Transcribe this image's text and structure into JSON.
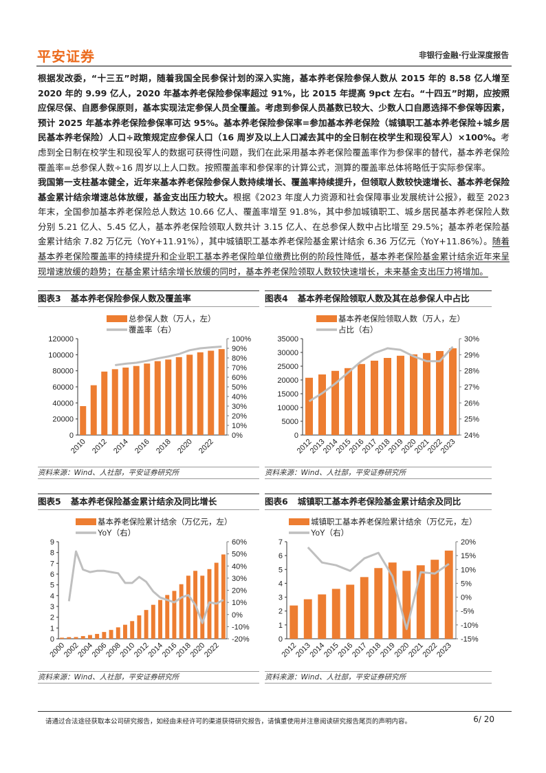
{
  "header": {
    "logo": "平安证券",
    "category": "非银行金融·行业深度报告"
  },
  "paragraphs": [
    {
      "segments": [
        {
          "style": "bold",
          "text": "根据发改委，“十三五”时期，随着我国全民参保计划的深入实施，基本养老保险参保人数从 2015 年的 8.58 亿人增至 2020 年的 9.99 亿人，2020 年基本养老保险参保率超过 91%，比 2015 年提高 9pct 左右。“十四五”时期，应按照应保尽保、自愿参保原则，基本实现法定参保人员全覆盖。考虑到参保人员基数已较大、少数人口自愿选择不参保等因素，预计 2025 年基本养老保险参保率可达 95%。基本养老保险参保率=参加基本养老保险（城镇职工基本养老保险+城乡居民基本养老保险）人口÷政策规定应参保人口（16 周岁及以上人口减去其中的全日制在校学生和现役军人）×100%。"
        },
        {
          "style": "normal",
          "text": "考虑到全日制在校学生和现役军人的数据可获得性问题，我们在此采用基本养老保险覆盖率作为参保率的替代，基本养老保险覆盖率=总参保人数÷16 周岁以上人口数。按照覆盖率和参保率的计算公式，测算的覆盖率总体将略低于实际参保率。"
        }
      ]
    },
    {
      "segments": [
        {
          "style": "bold",
          "text": "我国第一支柱基本健全，近年来基本养老保险参保人数持续增长、覆盖率持续提升，但领取人数较快速增长、基本养老保险基金累计结余增速总体放缓，基金支出压力较大。"
        },
        {
          "style": "normal",
          "text": "根据《2023 年度人力资源和社会保障事业发展统计公报》，截至 2023 年末，全国参加基本养老保险总人数达 10.66 亿人、覆盖率增至 91.8%，其中参加城镇职工、城乡居民基本养老保险人数分别 5.21 亿人、5.45 亿人，基本养老保险领取人数共计 3.15 亿人、在总参保人数中占比增至 29.5%；基本养老保险基金累计结余 7.82 万亿元（YoY+11.91%），其中城镇职工基本养老保险基金累计结余 6.36 万亿元（YoY+11.86%）。"
        },
        {
          "style": "underline",
          "text": "随着基本养老保险覆盖率的持续提升和企业职工基本养老保险单位缴费比例的阶段性降低，基本养老保险基金累计结余近年来呈现增速放缓的趋势；在基金累计结余增长放缓的同时，基本养老保险领取人数较快速增长，未来基金支出压力将增加。"
        }
      ]
    }
  ],
  "figures": [
    {
      "number": "图表3",
      "title": "基本养老保险参保人数及覆盖率",
      "source": "资料来源：Wind、人社部，平安证券研究所"
    },
    {
      "number": "图表4",
      "title": "基本养老保险领取人数及其在总参保人中占比",
      "source": "资料来源：Wind、人社部，平安证券研究所"
    },
    {
      "number": "图表5",
      "title": "基本养老保险基金累计结余及同比增长",
      "source": "资料来源：Wind、人社部，平安证券研究所"
    },
    {
      "number": "图表6",
      "title": "城镇职工基本养老保险基金累计结余及同比",
      "source": "资料来源：Wind、人社部，平安证券研究所"
    }
  ],
  "colors": {
    "bar": "#ED7D31",
    "line": "#BFBFBF",
    "brand": "#EC6A1C"
  },
  "chart_data": [
    {
      "type": "bar+line",
      "categories": [
        "2010",
        "2011",
        "2012",
        "2013",
        "2014",
        "2015",
        "2016",
        "2017",
        "2018",
        "2019",
        "2020",
        "2021",
        "2022",
        "2023"
      ],
      "tick_labels": [
        "2010",
        "2012",
        "2014",
        "2016",
        "2018",
        "2020",
        "2022"
      ],
      "series": [
        {
          "name": "总参保人数（万人，左）",
          "type": "bar",
          "axis": "left",
          "values": [
            36000,
            62000,
            79000,
            82000,
            84000,
            86000,
            89000,
            92000,
            94000,
            97000,
            100000,
            103000,
            105000,
            107000
          ]
        },
        {
          "name": "覆盖率（右）",
          "type": "line",
          "axis": "right",
          "values": [
            null,
            null,
            null,
            72.5,
            74,
            75,
            77,
            79.5,
            81.5,
            84,
            88,
            90,
            91,
            91.8
          ]
        }
      ],
      "ylim_left": [
        0,
        120000
      ],
      "yticks_left": [
        "0",
        "20000",
        "40000",
        "60000",
        "80000",
        "100000",
        "120000"
      ],
      "ylim_right": [
        0,
        100
      ],
      "yticks_right": [
        "0%",
        "10%",
        "20%",
        "30%",
        "40%",
        "50%",
        "60%",
        "70%",
        "80%",
        "90%",
        "100%"
      ],
      "legend": "top"
    },
    {
      "type": "bar+line",
      "categories": [
        "2012",
        "2013",
        "2014",
        "2015",
        "2016",
        "2017",
        "2018",
        "2019",
        "2020",
        "2021",
        "2022",
        "2023"
      ],
      "tick_labels": [
        "2012",
        "2013",
        "2014",
        "2015",
        "2016",
        "2017",
        "2018",
        "2019",
        "2020",
        "2021",
        "2022",
        "2023"
      ],
      "series": [
        {
          "name": "基本养老保险领取人数（万人，左）",
          "type": "bar",
          "axis": "left",
          "values": [
            20800,
            22000,
            23300,
            24300,
            25800,
            27000,
            28000,
            28800,
            29300,
            29800,
            30500,
            31500
          ]
        },
        {
          "name": "占比（右）",
          "type": "line",
          "axis": "right",
          "values": [
            26.1,
            26.6,
            27.2,
            27.9,
            28.6,
            29.1,
            29.4,
            29.3,
            28.9,
            28.6,
            28.6,
            29.5
          ]
        }
      ],
      "ylim_left": [
        0,
        35000
      ],
      "yticks_left": [
        "0",
        "5000",
        "10000",
        "15000",
        "20000",
        "25000",
        "30000",
        "35000"
      ],
      "ylim_right": [
        24,
        30
      ],
      "yticks_right": [
        "24%",
        "25%",
        "26%",
        "27%",
        "28%",
        "29%",
        "30%"
      ],
      "legend": "top"
    },
    {
      "type": "bar+line",
      "categories": [
        "2000",
        "2001",
        "2002",
        "2003",
        "2004",
        "2005",
        "2006",
        "2007",
        "2008",
        "2009",
        "2010",
        "2011",
        "2012",
        "2013",
        "2014",
        "2015",
        "2016",
        "2017",
        "2018",
        "2019",
        "2020",
        "2021",
        "2022",
        "2023"
      ],
      "tick_labels": [
        "2000",
        "2002",
        "2004",
        "2006",
        "2008",
        "2010",
        "2012",
        "2014",
        "2016",
        "2018",
        "2020",
        "2022"
      ],
      "series": [
        {
          "name": "基本养老保险累计结余（万亿元，左）",
          "type": "bar",
          "axis": "left",
          "values": [
            0.1,
            0.15,
            0.16,
            0.25,
            0.35,
            0.45,
            0.63,
            0.82,
            1.06,
            1.3,
            1.64,
            2.17,
            2.67,
            3.15,
            3.6,
            4.06,
            4.44,
            5.06,
            5.85,
            6.3,
            5.85,
            6.46,
            7.05,
            7.82
          ]
        },
        {
          "name": "YoY（右）",
          "type": "line",
          "axis": "right",
          "values": [
            null,
            11,
            52,
            37,
            35,
            36,
            36,
            35,
            34,
            26,
            26,
            31,
            27,
            19,
            14,
            12,
            10,
            14,
            16,
            8,
            -7,
            10,
            9,
            12
          ]
        }
      ],
      "ylim_left": [
        0,
        9
      ],
      "yticks_left": [
        "0",
        "1",
        "2",
        "3",
        "4",
        "5",
        "6",
        "7",
        "8",
        "9"
      ],
      "ylim_right": [
        -20,
        60
      ],
      "yticks_right": [
        "-20%",
        "-10%",
        "0%",
        "10%",
        "20%",
        "30%",
        "40%",
        "50%",
        "60%"
      ],
      "legend": "top"
    },
    {
      "type": "bar+line",
      "categories": [
        "2012",
        "2013",
        "2014",
        "2015",
        "2016",
        "2017",
        "2018",
        "2019",
        "2020",
        "2021",
        "2022",
        "2023"
      ],
      "tick_labels": [
        "2012",
        "2013",
        "2014",
        "2015",
        "2016",
        "2017",
        "2018",
        "2019",
        "2020",
        "2021",
        "2022",
        "2023"
      ],
      "series": [
        {
          "name": "城镇职工基本养老保险累计结余（万亿元，左）",
          "type": "bar",
          "axis": "left",
          "values": [
            2.4,
            2.85,
            3.2,
            3.6,
            3.9,
            4.45,
            5.1,
            5.5,
            4.9,
            5.3,
            5.7,
            6.36
          ]
        },
        {
          "name": "YoY（右）",
          "type": "line",
          "axis": "right",
          "values": [
            null,
            18,
            12.5,
            11.5,
            9.5,
            14,
            16,
            7.5,
            -11.5,
            9,
            8.5,
            12
          ]
        }
      ],
      "ylim_left": [
        0,
        7
      ],
      "yticks_left": [
        "0",
        "1",
        "2",
        "3",
        "4",
        "5",
        "6",
        "7"
      ],
      "ylim_right": [
        -15,
        20
      ],
      "yticks_right": [
        "-15%",
        "-10%",
        "-5%",
        "0%",
        "5%",
        "10%",
        "15%",
        "20%"
      ],
      "legend": "top"
    }
  ],
  "footer": {
    "disclaimer": "请通过合法途径获取本公司研究报告，如经由未经许可的渠道获得研究报告，请慎重使用并注意阅读研究报告尾页的声明内容。",
    "page": "6/ 20"
  }
}
